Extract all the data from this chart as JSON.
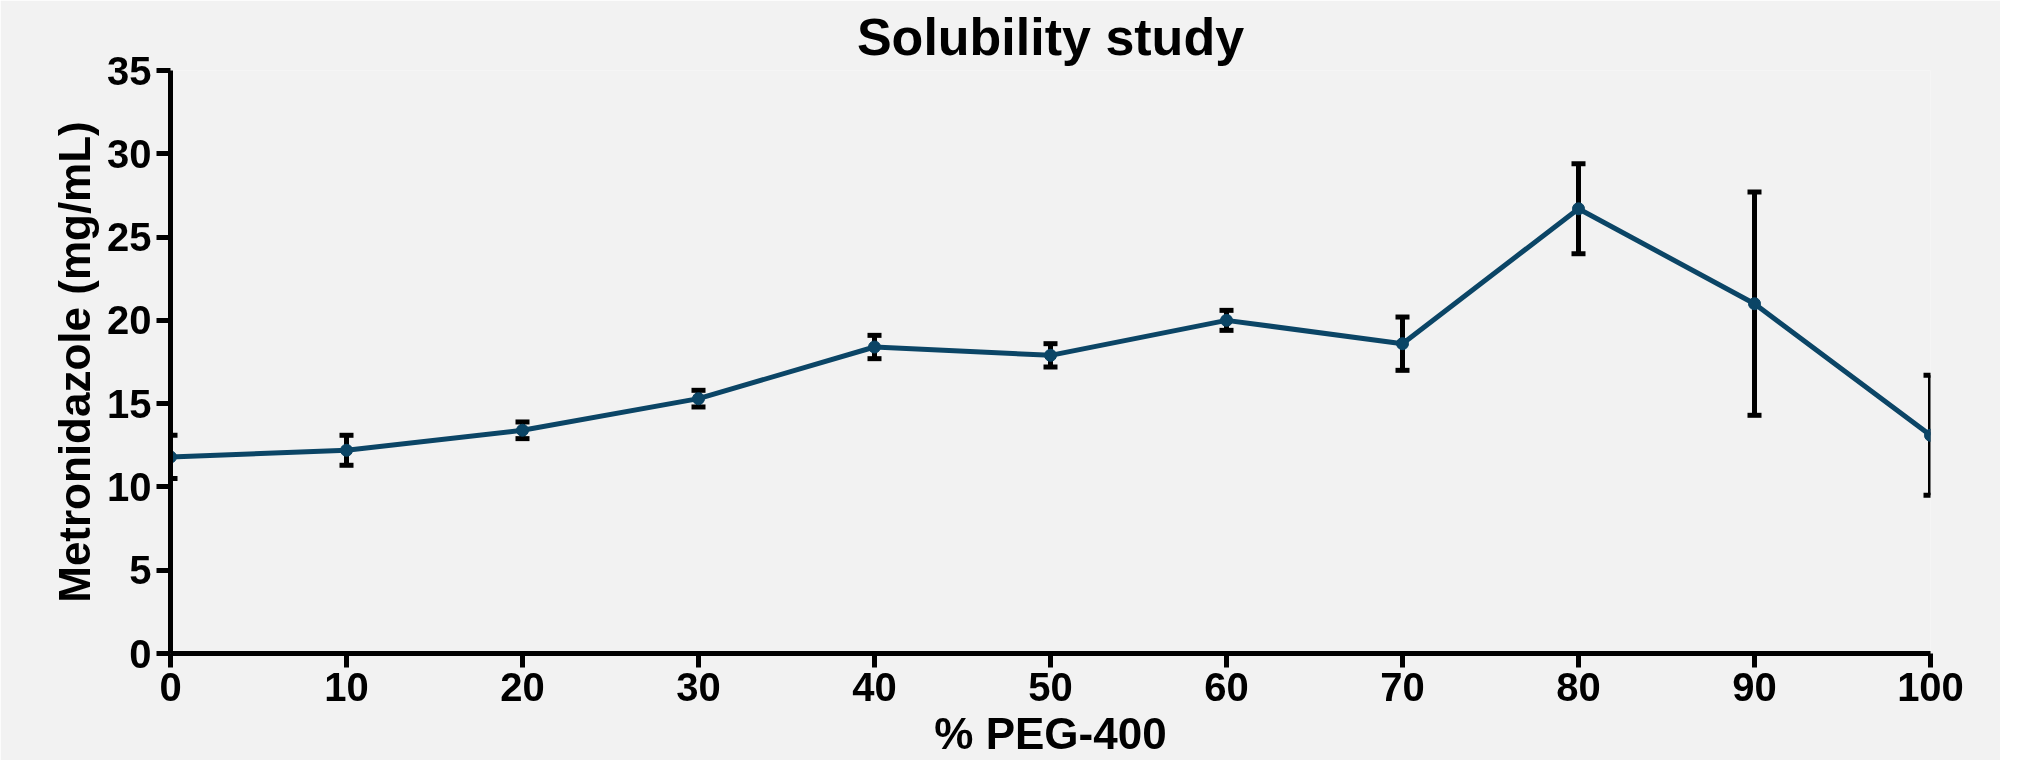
{
  "chart_data": {
    "type": "line",
    "title": "Solubility study",
    "xlabel": "% PEG-400",
    "ylabel": "Metronidazole (mg/mL)",
    "x": [
      0,
      10,
      20,
      30,
      40,
      50,
      60,
      70,
      80,
      90,
      100
    ],
    "series": [
      {
        "color": "#0b4566",
        "values": [
          11.8,
          12.2,
          13.4,
          15.3,
          18.4,
          17.9,
          20.0,
          18.6,
          26.7,
          21.0,
          13.1
        ],
        "errors": [
          1.3,
          0.9,
          0.5,
          0.5,
          0.7,
          0.7,
          0.6,
          1.6,
          2.7,
          6.7,
          3.6
        ]
      }
    ],
    "xlim": [
      0,
      100
    ],
    "xticks": [
      0,
      10,
      20,
      30,
      40,
      50,
      60,
      70,
      80,
      90,
      100
    ],
    "ylim": [
      0,
      35
    ],
    "yticks": [
      0,
      5,
      10,
      15,
      20,
      25,
      30,
      35
    ],
    "grid": false,
    "marker": "circle",
    "line_style": "solid"
  }
}
